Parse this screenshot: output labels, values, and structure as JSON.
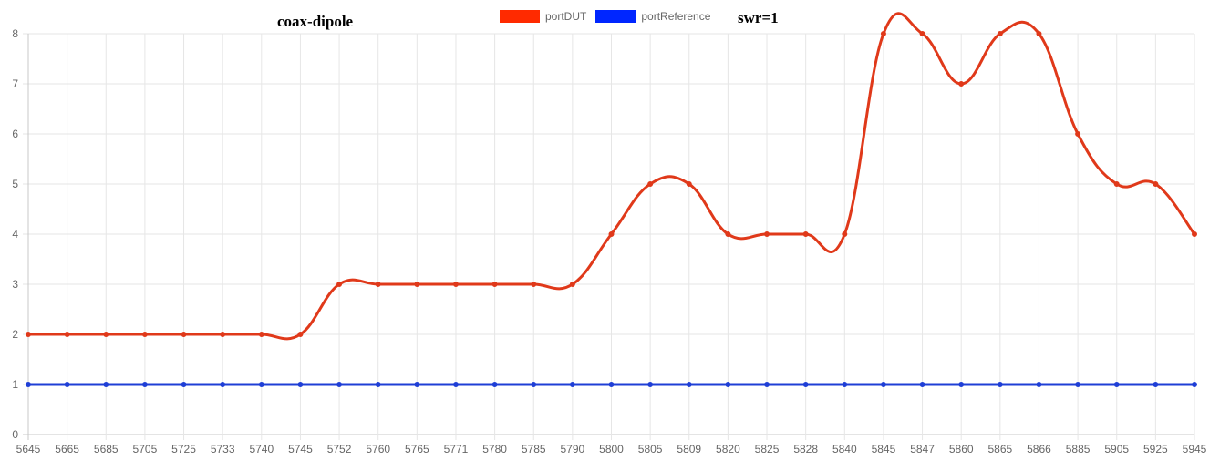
{
  "chart_data": {
    "type": "line",
    "title_left": "coax-dipole",
    "title_right": "swr=1",
    "categories": [
      "5645",
      "5665",
      "5685",
      "5705",
      "5725",
      "5733",
      "5740",
      "5745",
      "5752",
      "5760",
      "5765",
      "5771",
      "5780",
      "5785",
      "5790",
      "5800",
      "5805",
      "5809",
      "5820",
      "5825",
      "5828",
      "5840",
      "5845",
      "5847",
      "5860",
      "5865",
      "5866",
      "5885",
      "5905",
      "5925",
      "5945"
    ],
    "series": [
      {
        "name": "portDUT",
        "color": "#ff2a00",
        "line_color": "#e0391a",
        "values": [
          2,
          2,
          2,
          2,
          2,
          2,
          2,
          2,
          3,
          3,
          3,
          3,
          3,
          3,
          3,
          4,
          5,
          5,
          4,
          4,
          4,
          4,
          8,
          8,
          7,
          8,
          8,
          6,
          5,
          5,
          4
        ]
      },
      {
        "name": "portReference",
        "color": "#0026ff",
        "line_color": "#1f3fd6",
        "values": [
          1,
          1,
          1,
          1,
          1,
          1,
          1,
          1,
          1,
          1,
          1,
          1,
          1,
          1,
          1,
          1,
          1,
          1,
          1,
          1,
          1,
          1,
          1,
          1,
          1,
          1,
          1,
          1,
          1,
          1,
          1
        ]
      }
    ],
    "ylim": [
      0,
      8
    ],
    "yticks": [
      "0",
      "1",
      "2",
      "3",
      "4",
      "5",
      "6",
      "7",
      "8"
    ],
    "grid": true,
    "legend_position": "top"
  }
}
